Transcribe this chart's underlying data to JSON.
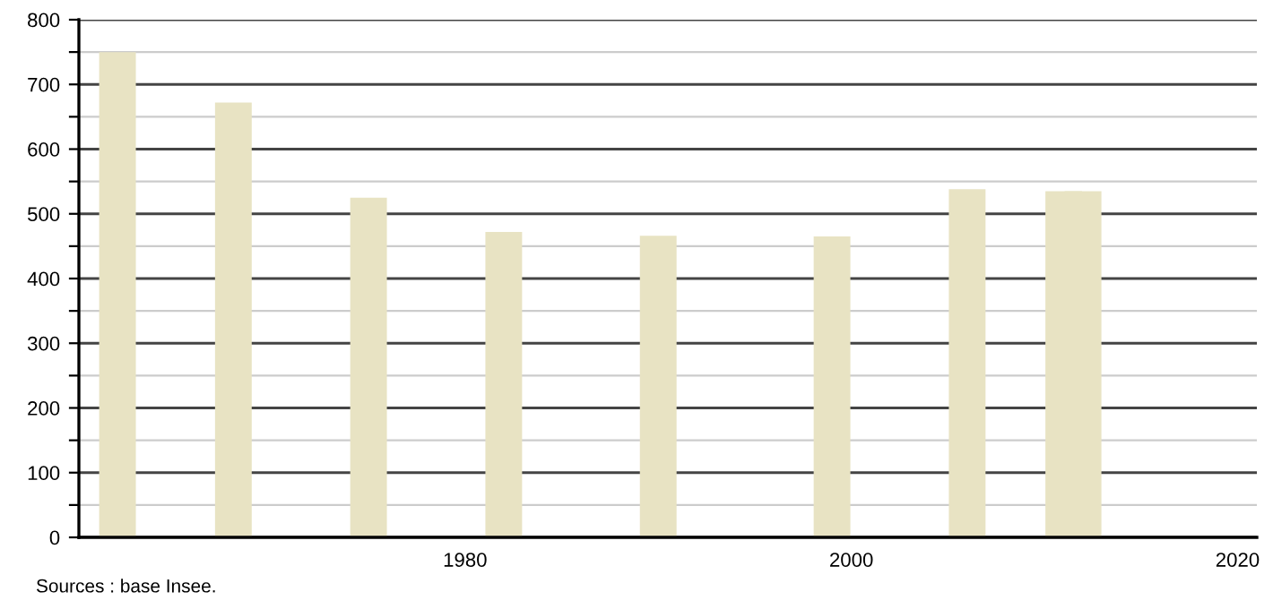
{
  "chart_data": {
    "type": "bar",
    "x": [
      1962,
      1968,
      1975,
      1982,
      1990,
      1999,
      2006,
      2011,
      2012
    ],
    "values": [
      750,
      672,
      525,
      472,
      466,
      465,
      538,
      535,
      535
    ],
    "color": "#e8e3c3",
    "xlim": [
      1960,
      2021
    ],
    "xticks": [
      1980,
      2000,
      2020
    ],
    "ylim": [
      0,
      800
    ],
    "yticks": [
      0,
      {
        "value": 50,
        "label": null
      },
      100,
      {
        "value": 150,
        "label": null
      },
      200,
      {
        "value": 250,
        "label": null
      },
      300,
      {
        "value": 350,
        "label": null
      },
      400,
      {
        "value": 450,
        "label": null
      },
      500,
      {
        "value": 550,
        "label": null
      },
      600,
      {
        "value": 650,
        "label": null
      },
      700,
      {
        "value": 750,
        "label": null
      },
      800
    ],
    "grid": "y",
    "annotations": [
      "Sources : base Insee."
    ]
  }
}
